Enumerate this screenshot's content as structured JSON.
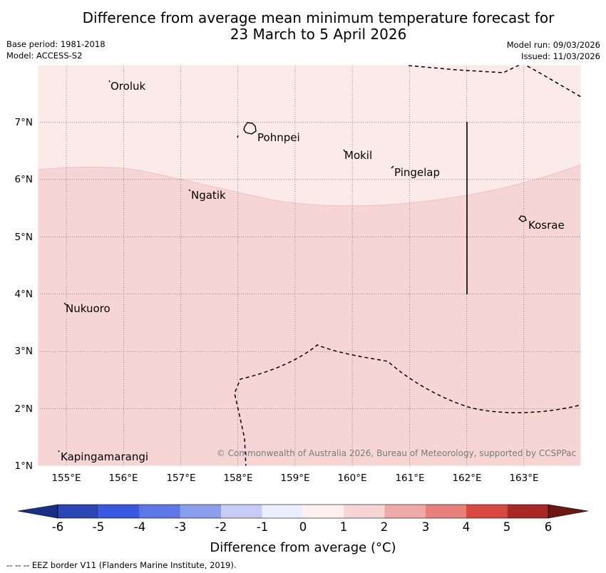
{
  "header": {
    "title_line1": "Difference from average mean minimum temperature forecast for",
    "title_line2": "23 March to 5 April 2026",
    "base_period": "Base period: 1981-2018",
    "model": "Model: ACCESS-S2",
    "model_run": "Model run: 09/03/2026",
    "issued": "Issued: 11/03/2026"
  },
  "map": {
    "region": {
      "lon_min": 154.5,
      "lon_max": 164.0,
      "lat_min": 1.0,
      "lat_max": 8.0
    },
    "lon_ticks": [
      "155°E",
      "156°E",
      "157°E",
      "158°E",
      "159°E",
      "160°E",
      "161°E",
      "162°E",
      "163°E"
    ],
    "lat_ticks": [
      "1°N",
      "2°N",
      "3°N",
      "4°N",
      "5°N",
      "6°N",
      "7°N"
    ],
    "places": [
      {
        "name": "Oroluk",
        "lon": 155.75,
        "lat": 7.65
      },
      {
        "name": "Pohnpei",
        "lon": 158.3,
        "lat": 6.8
      },
      {
        "name": "Mokil",
        "lon": 159.85,
        "lat": 6.45
      },
      {
        "name": "Pingelap",
        "lon": 160.7,
        "lat": 6.2
      },
      {
        "name": "Ngatik",
        "lon": 157.1,
        "lat": 5.8
      },
      {
        "name": "Kosrae",
        "lon": 163.0,
        "lat": 5.3
      },
      {
        "name": "Nukuoro",
        "lon": 154.95,
        "lat": 3.8
      },
      {
        "name": "Kapingamarangi",
        "lon": 154.85,
        "lat": 1.25
      }
    ],
    "zone_colors": {
      "low_anomaly": "#fbeae8",
      "high_anomaly": "#f5d6d4"
    },
    "watermark": "© Commonwealth of Australia 2026, Bureau of Meteorology, supported by CCSPPac"
  },
  "colorbar": {
    "title": "Difference from average (°C)",
    "tick_labels": [
      "-6",
      "-5",
      "-4",
      "-3",
      "-2",
      "-1",
      "0",
      "1",
      "2",
      "3",
      "4",
      "5",
      "6"
    ],
    "colors": [
      "#172f86",
      "#2b45b3",
      "#3a58df",
      "#5f77e6",
      "#8b9ded",
      "#c6ccf6",
      "#ebeefc",
      "#fdf0ef",
      "#f5d6d4",
      "#eeaaa7",
      "#e7807b",
      "#d84a3f",
      "#a82826",
      "#6e1612"
    ]
  },
  "footer": {
    "eez_note": "--  --  -- EEZ border V11 (Flanders Marine Institute, 2019)."
  }
}
